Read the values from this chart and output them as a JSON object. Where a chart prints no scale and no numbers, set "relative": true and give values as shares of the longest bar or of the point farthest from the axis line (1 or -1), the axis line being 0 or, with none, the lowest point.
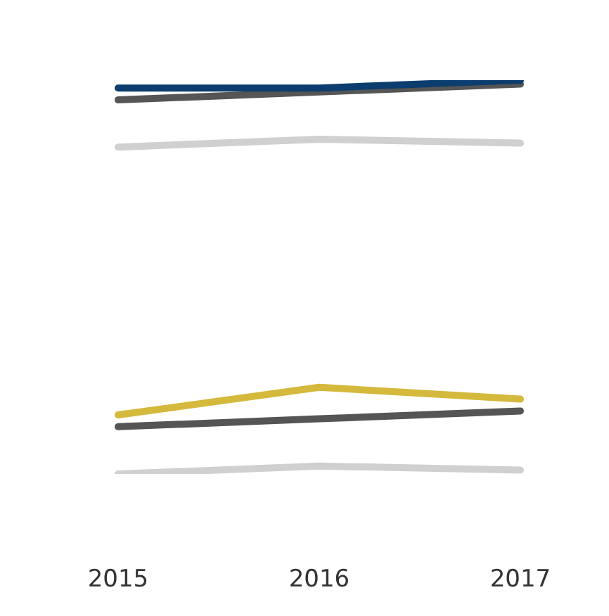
{
  "chart_data": {
    "type": "line",
    "relative": true,
    "categories": [
      "2015",
      "2016",
      "2017"
    ],
    "series": [
      {
        "color": "#d0d0d0",
        "values": [
          0.83,
          0.85,
          0.84
        ]
      },
      {
        "color": "#555555",
        "values": [
          0.95,
          0.97,
          0.99
        ]
      },
      {
        "color": "#0b3d6e",
        "values": [
          0.98,
          0.98,
          1
        ]
      },
      {
        "color": "#d0d0d0",
        "values": [
          0,
          0.02,
          0.01
        ]
      },
      {
        "color": "#555555",
        "values": [
          0.12,
          0.14,
          0.16
        ]
      },
      {
        "color": "#d4b93c",
        "values": [
          0.15,
          0.22,
          0.19
        ]
      }
    ]
  }
}
